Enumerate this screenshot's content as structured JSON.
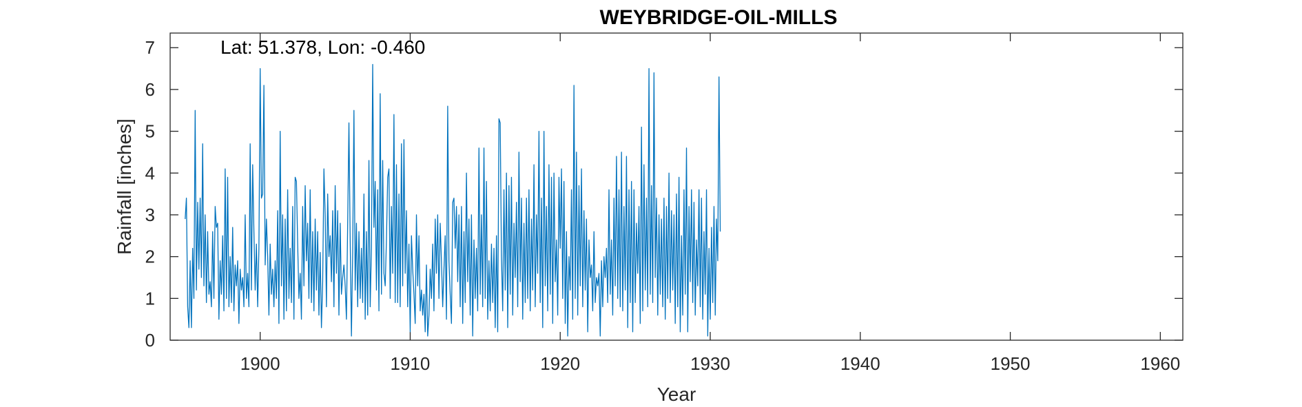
{
  "chart_data": {
    "type": "line",
    "title": "WEYBRIDGE-OIL-MILLS",
    "annotation": "Lat: 51.378, Lon: -0.460",
    "xlabel": "Year",
    "ylabel": "Rainfall [inches]",
    "xlim": [
      1894,
      1961.5
    ],
    "ylim": [
      0,
      7.35
    ],
    "xticks": [
      1900,
      1910,
      1920,
      1930,
      1940,
      1950,
      1960
    ],
    "yticks": [
      0,
      1,
      2,
      3,
      4,
      5,
      6,
      7
    ],
    "grid": false,
    "line_color": "#0072BD",
    "series": [
      {
        "x_start": 1895.0,
        "x_step": 0.083333,
        "values": [
          2.9,
          3.4,
          0.8,
          0.3,
          1.9,
          0.3,
          2.2,
          1.0,
          5.5,
          1.2,
          3.3,
          1.7,
          3.4,
          1.5,
          4.7,
          1.3,
          3.0,
          0.9,
          2.6,
          1.1,
          1.4,
          0.8,
          2.6,
          1.0,
          3.2,
          2.7,
          2.8,
          0.5,
          1.9,
          1.1,
          2.5,
          0.7,
          4.1,
          1.0,
          3.9,
          0.8,
          2.0,
          0.9,
          2.7,
          0.7,
          1.8,
          1.3,
          1.9,
          0.4,
          1.7,
          1.2,
          1.5,
          0.8,
          3.0,
          1.0,
          1.6,
          0.8,
          4.7,
          1.2,
          4.2,
          2.6,
          1.2,
          2.3,
          0.8,
          2.2,
          6.5,
          3.4,
          3.5,
          6.1,
          1.8,
          2.9,
          2.0,
          0.6,
          2.3,
          1.1,
          1.7,
          0.8,
          1.9,
          1.0,
          3.1,
          0.4,
          5.0,
          1.3,
          3.0,
          0.5,
          2.9,
          0.7,
          3.6,
          1.0,
          2.2,
          0.9,
          3.2,
          0.5,
          3.9,
          3.8,
          2.3,
          1.0,
          1.6,
          0.5,
          3.2,
          1.3,
          3.7,
          1.9,
          2.8,
          1.0,
          3.6,
          0.9,
          2.6,
          0.7,
          2.9,
          1.2,
          2.6,
          0.6,
          2.1,
          0.3,
          1.4,
          4.1,
          3.0,
          0.8,
          3.5,
          2.0,
          2.5,
          1.4,
          3.1,
          0.8,
          3.7,
          1.6,
          3.1,
          0.6,
          2.8,
          1.1,
          1.5,
          1.8,
          1.3,
          0.5,
          2.8,
          5.2,
          2.4,
          0.1,
          2.1,
          5.5,
          1.2,
          2.8,
          0.8,
          2.6,
          1.0,
          2.2,
          0.9,
          3.5,
          0.5,
          2.6,
          0.6,
          4.3,
          0.8,
          2.2,
          6.6,
          2.7,
          3.8,
          1.2,
          3.6,
          0.7,
          5.9,
          1.1,
          4.3,
          1.6,
          1.3,
          2.4,
          3.9,
          4.1,
          1.0,
          3.2,
          1.6,
          5.4,
          0.9,
          4.2,
          0.9,
          3.5,
          0.8,
          4.7,
          1.3,
          4.8,
          1.6,
          3.1,
          0.8,
          2.3,
          0.2,
          2.5,
          1.7,
          1.1,
          0.4,
          3.0,
          1.3,
          2.5,
          0.7,
          1.2,
          0.6,
          1.1,
          0.2,
          1.8,
          0.1,
          0.6,
          1.7,
          1.0,
          2.3,
          0.7,
          2.9,
          1.6,
          3.0,
          1.0,
          2.8,
          1.9,
          0.8,
          1.7,
          2.5,
          0.5,
          5.6,
          1.9,
          1.1,
          0.4,
          3.3,
          3.4,
          2.2,
          3.2,
          1.4,
          3.0,
          0.8,
          3.2,
          0.4,
          2.6,
          0.9,
          4.0,
          1.4,
          2.9,
          0.6,
          3.0,
          0.1,
          2.4,
          1.0,
          2.2,
          0.7,
          4.6,
          1.1,
          3.0,
          0.8,
          4.6,
          1.0,
          3.8,
          0.5,
          1.9,
          0.7,
          2.3,
          0.9,
          2.2,
          0.3,
          2.5,
          0.2,
          5.3,
          5.2,
          2.0,
          0.7,
          3.6,
          1.2,
          4.0,
          0.3,
          3.7,
          1.1,
          3.9,
          0.6,
          2.8,
          1.5,
          3.3,
          0.8,
          4.5,
          1.4,
          3.4,
          0.5,
          2.8,
          0.9,
          3.4,
          1.0,
          3.6,
          0.7,
          2.9,
          1.2,
          4.2,
          0.8,
          3.0,
          1.6,
          5.0,
          0.9,
          3.4,
          0.3,
          5.0,
          1.3,
          3.2,
          0.7,
          4.2,
          1.1,
          3.9,
          0.4,
          4.0,
          1.4,
          2.4,
          0.6,
          3.9,
          2.2,
          4.1,
          1.0,
          3.8,
          0.4,
          2.6,
          0.1,
          2.0,
          1.2,
          3.6,
          0.5,
          6.1,
          1.0,
          4.5,
          0.6,
          3.7,
          1.3,
          4.1,
          0.8,
          3.1,
          1.2,
          2.9,
          0.2,
          2.4,
          1.5,
          1.8,
          0.7,
          2.6,
          0.9,
          1.5,
          1.3,
          1.6,
          0.1,
          1.9,
          0.8,
          2.0,
          1.5,
          2.2,
          0.9,
          3.6,
          1.1,
          2.4,
          0.6,
          3.4,
          1.3,
          4.4,
          1.0,
          3.6,
          0.8,
          4.5,
          0.7,
          3.2,
          1.2,
          4.4,
          0.3,
          3.6,
          0.9,
          3.8,
          0.2,
          3.6,
          0.9,
          2.8,
          1.6,
          3.2,
          0.4,
          5.1,
          0.7,
          4.2,
          1.2,
          3.4,
          0.8,
          6.5,
          1.1,
          3.7,
          0.9,
          6.4,
          1.5,
          3.4,
          0.6,
          3.0,
          1.1,
          2.9,
          0.8,
          3.4,
          0.5,
          3.2,
          1.0,
          4.0,
          0.9,
          3.1,
          1.2,
          3.0,
          0.4,
          3.5,
          0.8,
          3.9,
          0.2,
          2.5,
          0.6,
          3.6,
          1.1,
          4.6,
          0.2,
          3.2,
          1.4,
          3.6,
          0.9,
          3.3,
          0.6,
          2.4,
          1.3,
          3.6,
          0.8,
          3.4,
          0.5,
          2.6,
          1.1,
          3.6,
          0.1,
          2.2,
          0.5,
          2.7,
          0.9,
          3.2,
          0.6,
          2.9,
          1.9,
          6.3,
          2.6
        ]
      }
    ]
  }
}
